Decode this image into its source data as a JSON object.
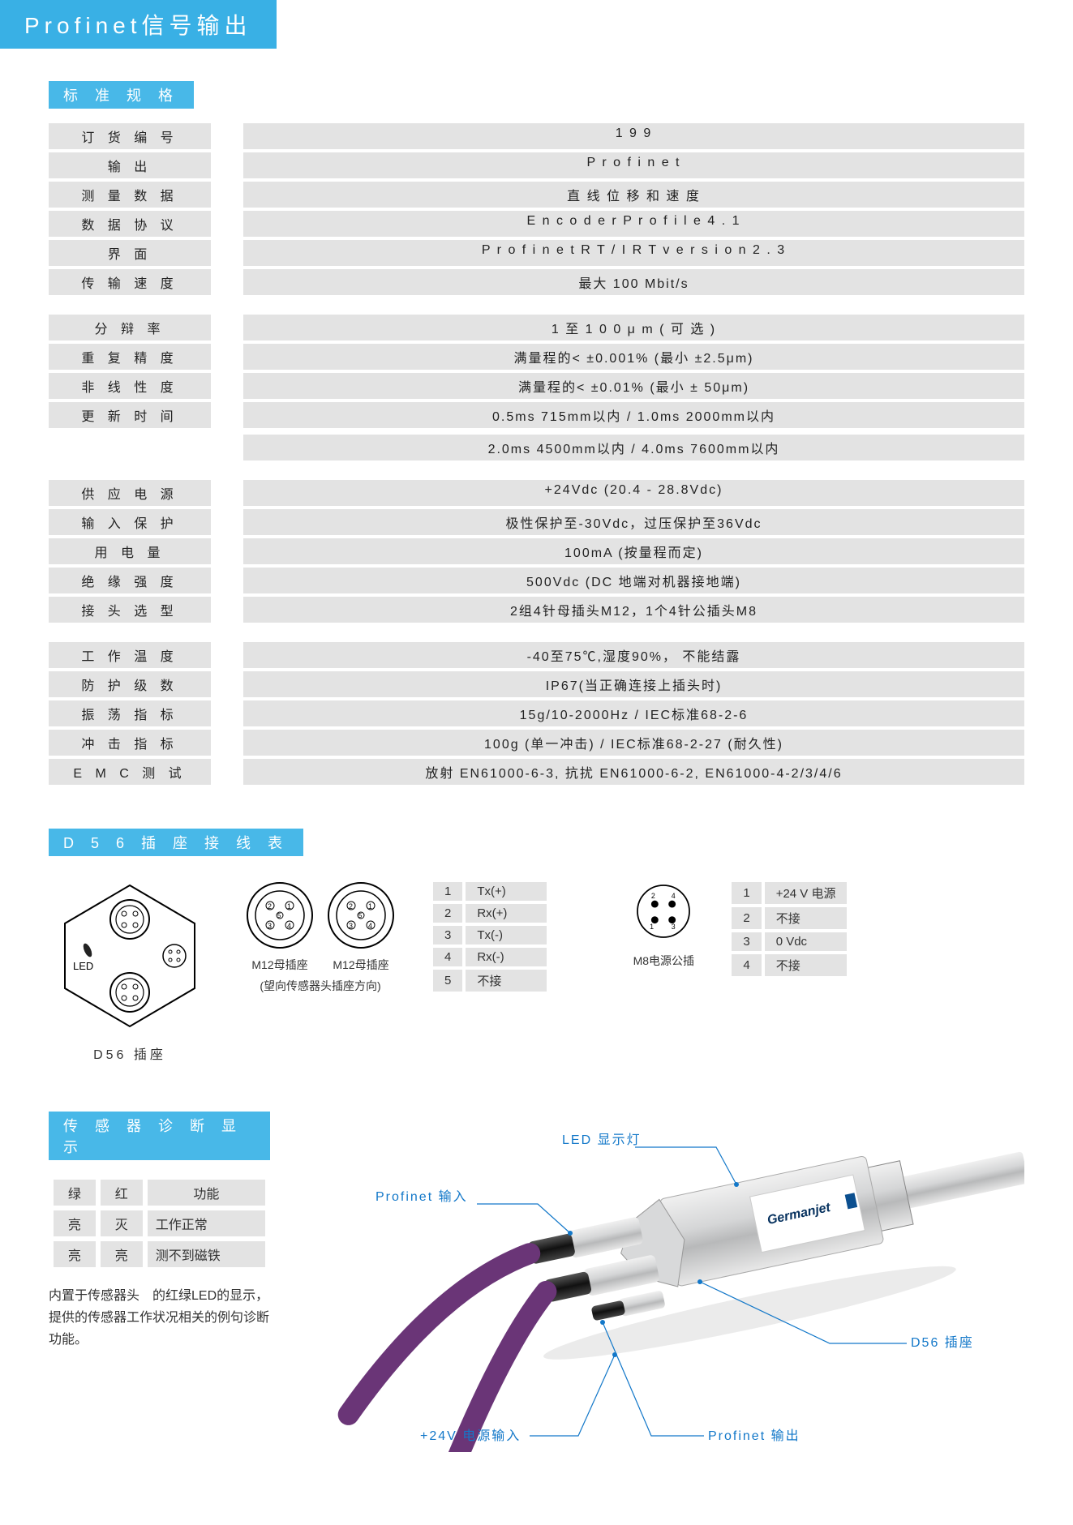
{
  "title": "Profinet信号输出",
  "sections": {
    "spec_header": "标 准 规 格",
    "wiring_header": "D 5 6  插 座 接 线 表",
    "diag_header": "传 感 器 诊 断 显 示"
  },
  "specs": {
    "g1": [
      {
        "label": "订 货 编 号",
        "value": "1 9 9"
      },
      {
        "label": "输 出",
        "value": "P r o f i n e t"
      },
      {
        "label": "测 量 数 据",
        "value": "直 线 位 移 和 速 度"
      },
      {
        "label": "数 据 协 议",
        "value": "E n c o d e r  P r o f i l e  4 . 1"
      },
      {
        "label": "界 面",
        "value": "P r o f i n e t  R T / I R T  v e r s i o n  2 . 3"
      },
      {
        "label": "传 输 速 度",
        "value": "最大  100 Mbit/s"
      }
    ],
    "g2": [
      {
        "label": "分 辩 率",
        "value": "1 至 1 0 0 μ m ( 可 选 )"
      },
      {
        "label": "重 复 精 度",
        "value": "满量程的< ±0.001% (最小 ±2.5μm)"
      },
      {
        "label": "非 线 性 度",
        "value": "满量程的< ±0.01% (最小 ± 50μm)"
      },
      {
        "label": "更 新 时 间",
        "value": "0.5ms   715mm以内  / 1.0ms  2000mm以内",
        "extra": "2.0ms   4500mm以内  / 4.0ms  7600mm以内"
      }
    ],
    "g3": [
      {
        "label": "供 应 电 源",
        "value": "+24Vdc (20.4 - 28.8Vdc)"
      },
      {
        "label": "输 入 保 护",
        "value": "极性保护至-30Vdc，过压保护至36Vdc"
      },
      {
        "label": "用 电 量",
        "value": "100mA (按量程而定)"
      },
      {
        "label": "绝 缘 强 度",
        "value": "500Vdc (DC 地端对机器接地端)"
      },
      {
        "label": "接 头 选 型",
        "value": "2组4针母插头M12，1个4针公插头M8"
      }
    ],
    "g4": [
      {
        "label": "工 作 温 度",
        "value": "-40至75℃,湿度90%， 不能结露"
      },
      {
        "label": "防 护 级 数",
        "value": "IP67(当正确连接上插头时)"
      },
      {
        "label": "振 荡 指 标",
        "value": "15g/10-2000Hz / IEC标准68-2-6"
      },
      {
        "label": "冲 击 指 标",
        "value": "100g (单一冲击) / IEC标准68-2-27 (耐久性)"
      },
      {
        "label": "E M C  测 试",
        "value": "放射 EN61000-6-3, 抗扰 EN61000-6-2, EN61000-4-2/3/4/6"
      }
    ]
  },
  "wiring": {
    "hex_label": "D56 插座",
    "led_label": "LED",
    "m12_label1": "M12母插座",
    "m12_label2": "M12母插座",
    "m12_sub": "(望向传感器头插座方向)",
    "m8_label": "M8电源公插",
    "pins_m12": [
      {
        "n": "1",
        "v": "Tx(+)"
      },
      {
        "n": "2",
        "v": "Rx(+)"
      },
      {
        "n": "3",
        "v": "Tx(-)"
      },
      {
        "n": "4",
        "v": "Rx(-)"
      },
      {
        "n": "5",
        "v": "不接"
      }
    ],
    "pins_m8": [
      {
        "n": "1",
        "v": "+24 V 电源"
      },
      {
        "n": "2",
        "v": "不接"
      },
      {
        "n": "3",
        "v": "0 Vdc"
      },
      {
        "n": "4",
        "v": "不接"
      }
    ]
  },
  "diag": {
    "cols": [
      "绿",
      "红",
      "功能"
    ],
    "rows": [
      [
        "亮",
        "灭",
        "工作正常"
      ],
      [
        "亮",
        "亮",
        "测不到磁铁"
      ]
    ],
    "text": "内置于传感器头　的红绿LED的显示，提供的传感器工作状况相关的例句诊断功能。"
  },
  "callouts": {
    "led": "LED 显示灯",
    "pin": "Profinet 输入",
    "d56": "D56 插座",
    "pout": "Profinet 输出",
    "pwr": "+24V 电源输入"
  },
  "colors": {
    "accent": "#39b0e5",
    "row": "#e3e3e3",
    "callout": "#1378c9",
    "cable": "#7a3b87",
    "body": "#c9cacb"
  }
}
